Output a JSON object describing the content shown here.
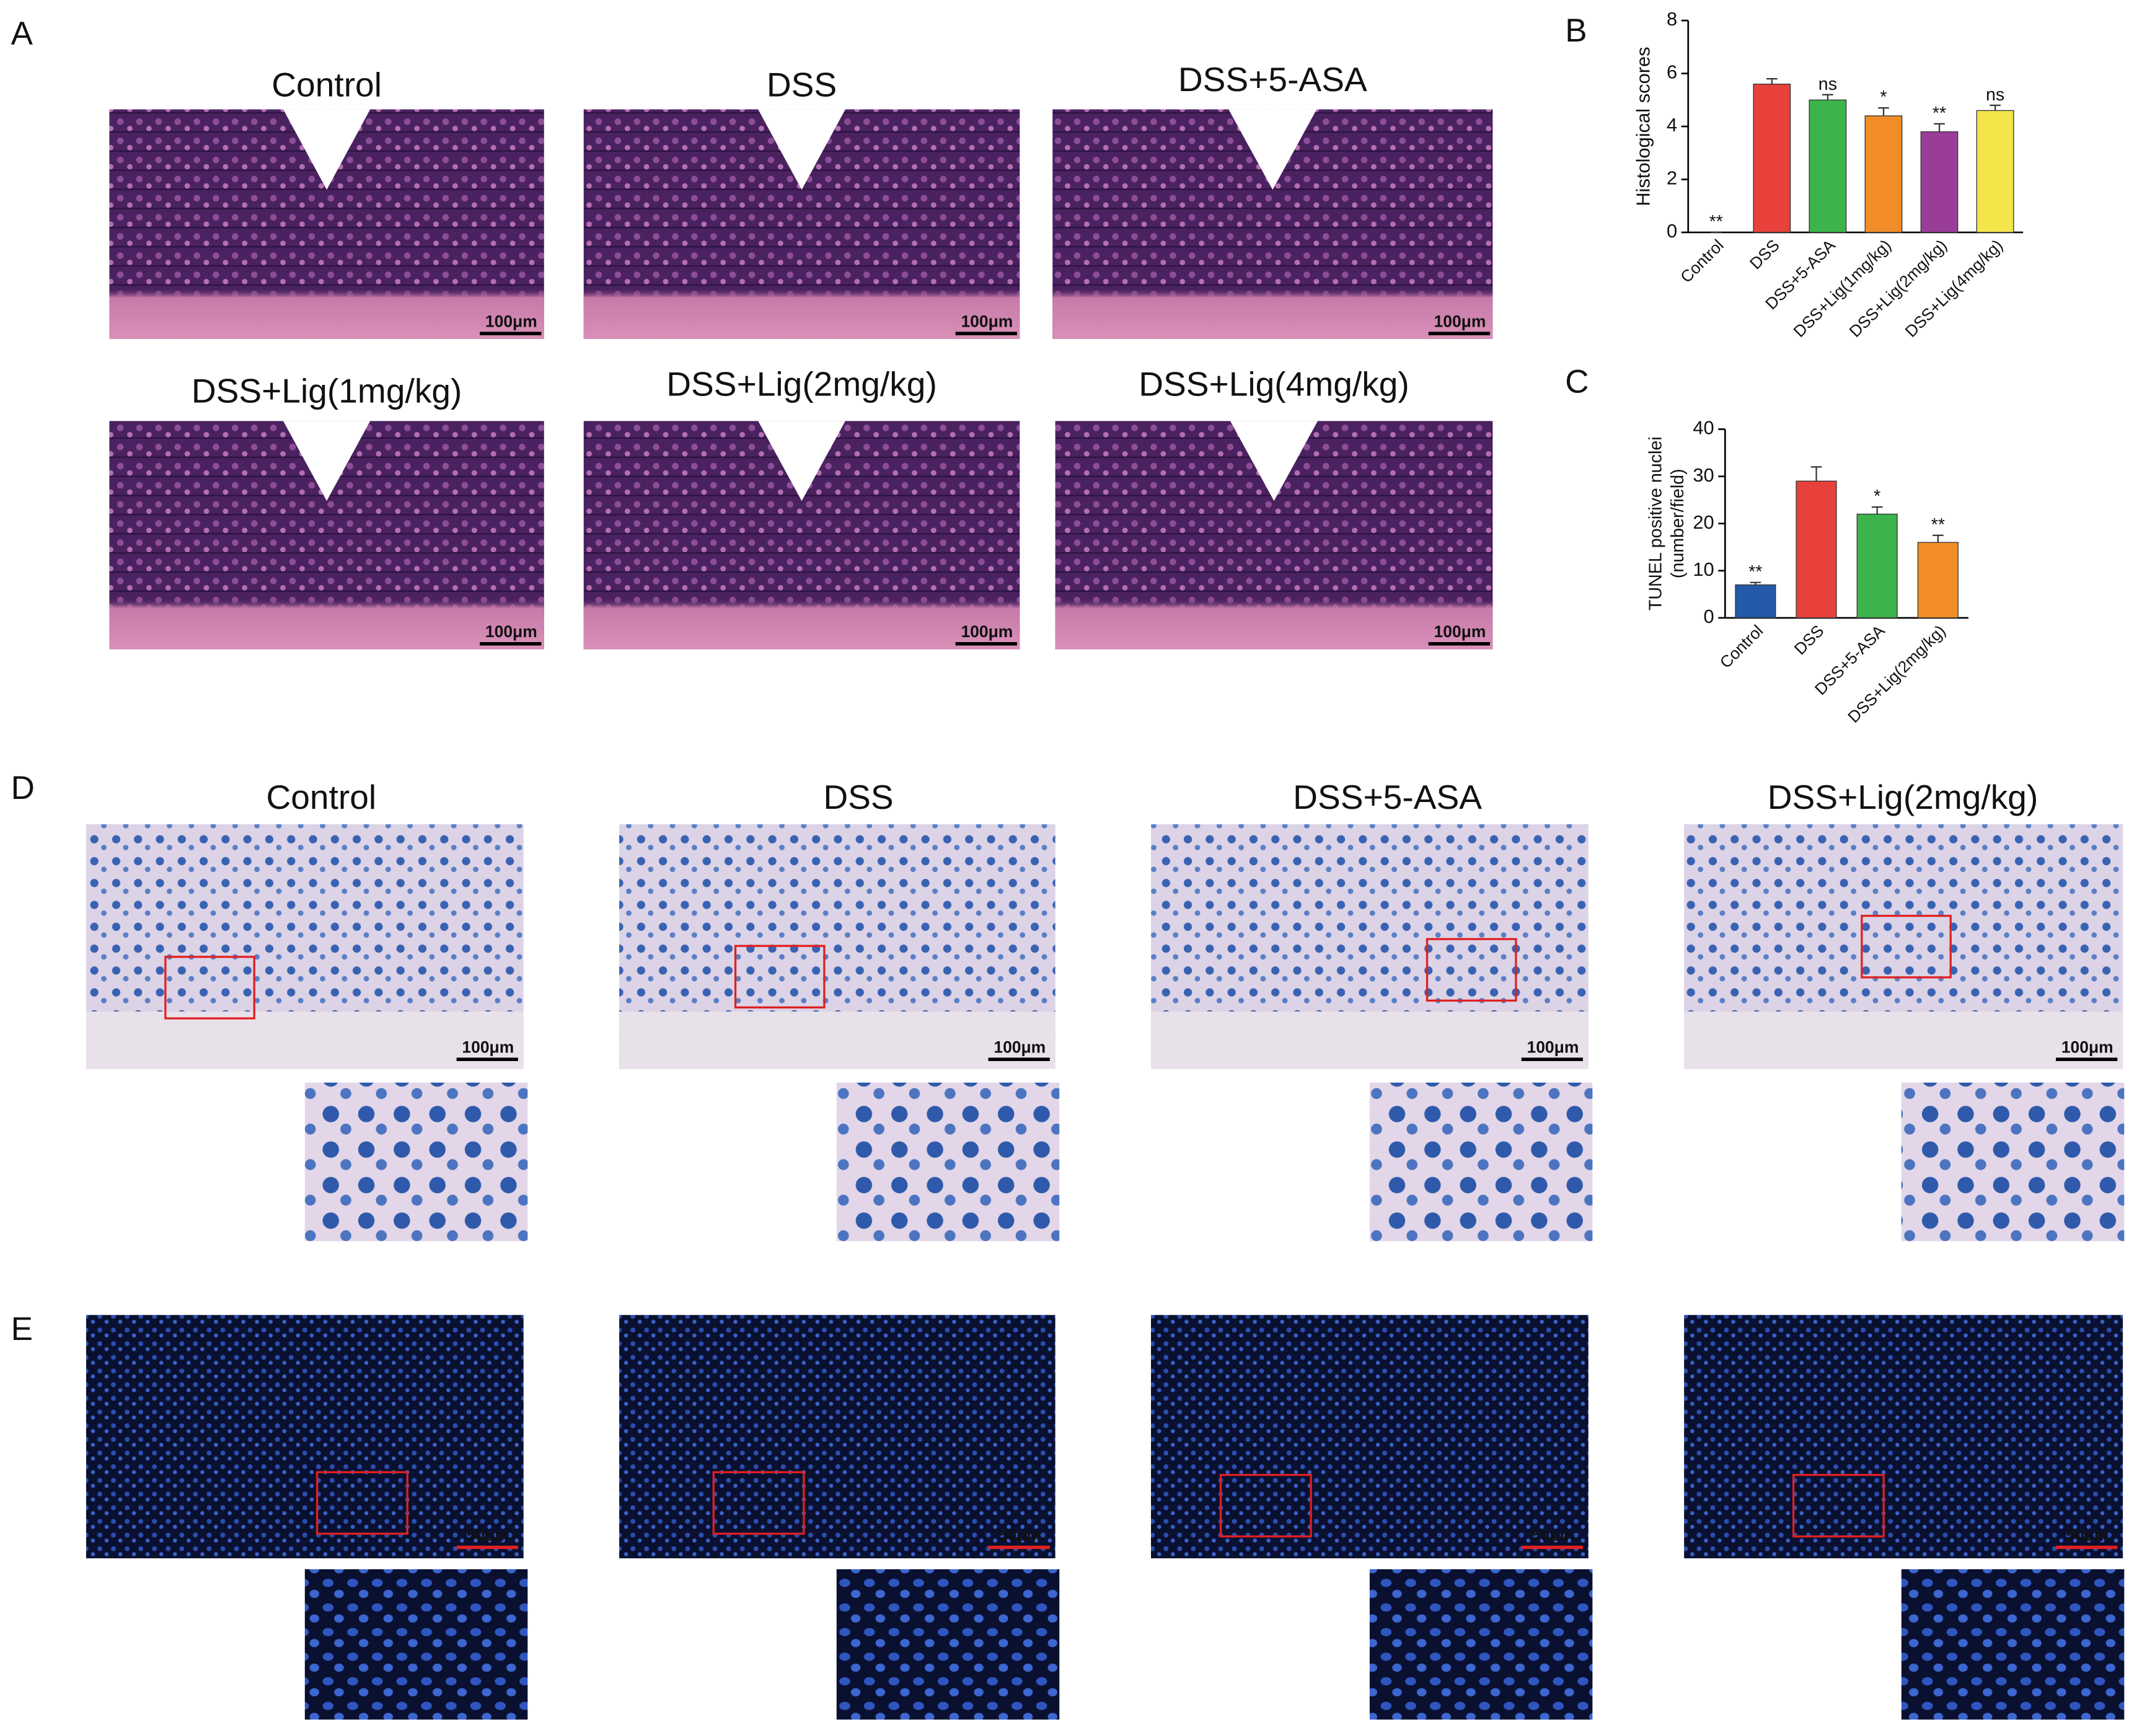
{
  "panel_labels": [
    "A",
    "B",
    "C",
    "D",
    "E"
  ],
  "panel_a": {
    "titles": [
      "Control",
      "DSS",
      "DSS+5-ASA",
      "DSS+Lig(1mg/kg)",
      "DSS+Lig(2mg/kg)",
      "DSS+Lig(4mg/kg)"
    ],
    "scale_bar": "100μm"
  },
  "panel_d": {
    "titles": [
      "Control",
      "DSS",
      "DSS+5-ASA",
      "DSS+Lig(2mg/kg)"
    ],
    "scale_bar": "100μm"
  },
  "panel_e": {
    "scale_bar": "50μm"
  },
  "chart_data": [
    {
      "type": "bar",
      "y_label": "Histological scores",
      "categories": [
        "Control",
        "DSS",
        "DSS+5-ASA",
        "DSS+Lig(1mg/kg)",
        "DSS+Lig(2mg/kg)",
        "DSS+Lig(4mg/kg)"
      ],
      "values": [
        0,
        5.6,
        5.0,
        4.4,
        3.8,
        4.6
      ],
      "errors": [
        0,
        0.2,
        0.2,
        0.3,
        0.3,
        0.2
      ],
      "annotations": [
        "**",
        null,
        "ns",
        "*",
        "**",
        "ns"
      ],
      "colors": [
        "#2458a8",
        "#e8413c",
        "#3cb44b",
        "#f28c28",
        "#9b3d98",
        "#f3e54a"
      ],
      "ylim": [
        0,
        8
      ],
      "yticks": [
        0,
        2,
        4,
        6,
        8
      ]
    },
    {
      "type": "bar",
      "y_label": [
        "TUNEL positive nuclei",
        "(number/field)"
      ],
      "categories": [
        "Control",
        "DSS",
        "DSS+5-ASA",
        "DSS+Lig(2mg/kg)"
      ],
      "values": [
        7,
        29,
        22,
        16
      ],
      "errors": [
        0.5,
        3,
        1.5,
        1.5
      ],
      "annotations": [
        "**",
        null,
        "*",
        "**"
      ],
      "colors": [
        "#2458a8",
        "#e8413c",
        "#3cb44b",
        "#f28c28"
      ],
      "ylim": [
        0,
        40
      ],
      "yticks": [
        0,
        10,
        20,
        30,
        40
      ]
    }
  ]
}
